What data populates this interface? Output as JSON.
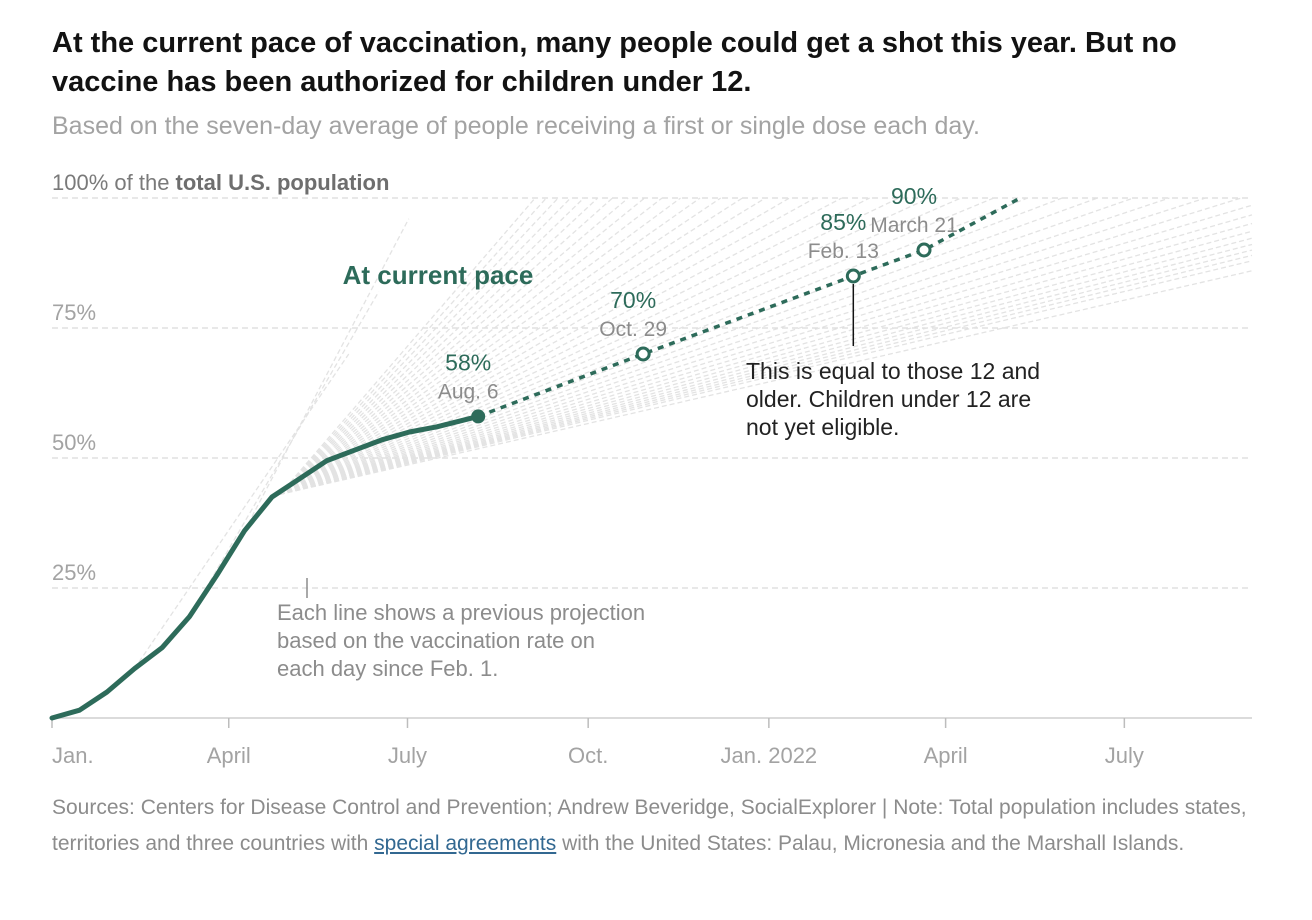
{
  "title": "At the current pace of vaccination, many people could get a shot this year. But no vaccine has been authorized for children under 12.",
  "subtitle": "Based on the seven-day average of people receiving a first or single dose each day.",
  "colors": {
    "accent": "#2d6b5a",
    "projection_lines": "#e3e3e3",
    "grid": "#d9d9d9",
    "axis_text": "#a3a3a3",
    "annotation_text": "#8c8c8c",
    "title_text": "#121212",
    "link": "#326891"
  },
  "chart_data": {
    "type": "line",
    "ylabel_prefix": "100% of the ",
    "ylabel_bold": "total U.S. population",
    "ylim": [
      0,
      100
    ],
    "yticks": [
      {
        "value": 25,
        "label": "25%"
      },
      {
        "value": 50,
        "label": "50%"
      },
      {
        "value": 75,
        "label": "75%"
      }
    ],
    "x_domain": [
      "2021-01-01",
      "2022-09-04"
    ],
    "xticks": [
      {
        "date": "2021-01-01",
        "label": "Jan."
      },
      {
        "date": "2021-04-01",
        "label": "April"
      },
      {
        "date": "2021-07-01",
        "label": "July"
      },
      {
        "date": "2021-10-01",
        "label": "Oct."
      },
      {
        "date": "2022-01-01",
        "label": "Jan. 2022"
      },
      {
        "date": "2022-04-01",
        "label": "April"
      },
      {
        "date": "2022-07-01",
        "label": "July"
      }
    ],
    "grid": true,
    "series_label": "At current pace",
    "actual": [
      {
        "date": "2021-01-01",
        "value": 0
      },
      {
        "date": "2021-01-15",
        "value": 1.5
      },
      {
        "date": "2021-01-29",
        "value": 5
      },
      {
        "date": "2021-02-12",
        "value": 9.5
      },
      {
        "date": "2021-02-26",
        "value": 13.5
      },
      {
        "date": "2021-03-12",
        "value": 19.5
      },
      {
        "date": "2021-03-26",
        "value": 27.5
      },
      {
        "date": "2021-04-09",
        "value": 36
      },
      {
        "date": "2021-04-23",
        "value": 42.5
      },
      {
        "date": "2021-05-07",
        "value": 46
      },
      {
        "date": "2021-05-21",
        "value": 49.5
      },
      {
        "date": "2021-06-04",
        "value": 51.5
      },
      {
        "date": "2021-06-18",
        "value": 53.5
      },
      {
        "date": "2021-07-02",
        "value": 55
      },
      {
        "date": "2021-07-16",
        "value": 56
      },
      {
        "date": "2021-08-06",
        "value": 58
      }
    ],
    "projection": [
      {
        "date": "2021-08-06",
        "value": 58
      },
      {
        "date": "2021-10-29",
        "value": 70
      },
      {
        "date": "2022-02-13",
        "value": 85
      },
      {
        "date": "2022-03-21",
        "value": 90
      },
      {
        "date": "2022-05-09",
        "value": 100
      }
    ],
    "projection_fan": {
      "start": "2021-04-27",
      "start_value": 43,
      "end": "2022-09-04",
      "end_range": [
        86,
        100
      ],
      "count": 40
    },
    "milestones": [
      {
        "date": "2021-08-06",
        "value": 58,
        "pct_label": "58%",
        "date_label": "Aug. 6",
        "filled": true
      },
      {
        "date": "2021-10-29",
        "value": 70,
        "pct_label": "70%",
        "date_label": "Oct. 29",
        "filled": false
      },
      {
        "date": "2022-02-13",
        "value": 85,
        "pct_label": "85%",
        "date_label": "Feb. 13",
        "filled": false
      },
      {
        "date": "2022-03-21",
        "value": 90,
        "pct_label": "90%",
        "date_label": "March 21",
        "filled": false
      }
    ],
    "annotations": {
      "projection_lines": [
        "Each line shows a previous projection",
        "based on the vaccination rate on",
        "each day since Feb. 1."
      ],
      "eligibility": [
        "This is equal to those 12 and",
        "older. Children under 12 are",
        "not yet eligible."
      ]
    }
  },
  "notes": {
    "text_before": "Sources: Centers for Disease Control and Prevention; Andrew Beveridge, SocialExplorer | Note: Total population includes states, territories and three countries with ",
    "link_text": "special agreements",
    "text_after": " with the United States: Palau, Micronesia and the Marshall Islands."
  }
}
